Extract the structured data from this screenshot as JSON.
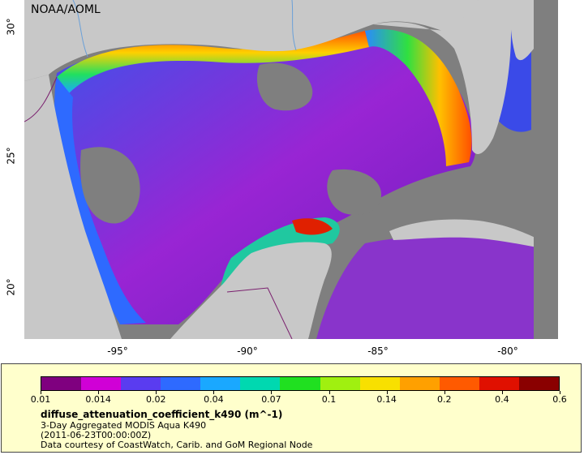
{
  "map": {
    "credit": "NOAA/AOML",
    "lat_labels": [
      "30°",
      "25°",
      "20°"
    ],
    "lon_labels": [
      "-95°",
      "-90°",
      "-85°",
      "-80°"
    ],
    "colors": {
      "land": "#c8c8c8",
      "no_data": "#7f7f7f",
      "coast_line": "#8c8c8c",
      "river": "#6aa0d8",
      "border": "#7a1f6e"
    }
  },
  "legend": {
    "colorbar_ticks": [
      "0.01",
      "0.014",
      "0.02",
      "0.04",
      "0.07",
      "0.1",
      "0.14",
      "0.2",
      "0.4",
      "0.6"
    ],
    "colorbar_colors": [
      "#7f007f",
      "#d000d6",
      "#5a3cf0",
      "#2e6aff",
      "#1aa8ff",
      "#00d8b0",
      "#20e020",
      "#a0f010",
      "#f8e000",
      "#ffa000",
      "#ff5a00",
      "#e01000",
      "#8a0000"
    ],
    "title": "diffuse_attenuation_coefficient_k490 (m^-1)",
    "subtitle": "3-Day Aggregated MODIS Aqua K490",
    "date": "(2011-06-23T00:00:00Z)",
    "credit": "Data courtesy of CoastWatch, Carib. and GoM Regional Node"
  }
}
